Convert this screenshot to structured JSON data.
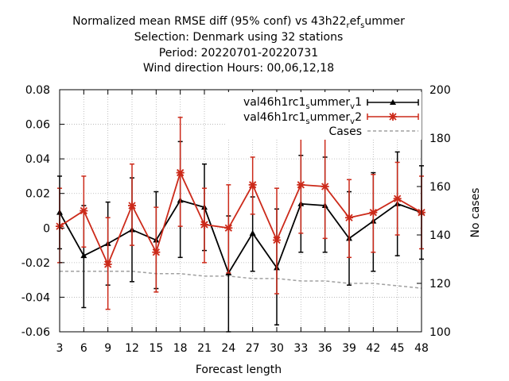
{
  "chart_data": {
    "type": "line",
    "title_lines": [
      "Normalized mean RMSE diff (95% conf) vs 43h22",
      "Selection: Denmark using    32 stations",
      "Period: 20220701-20220731",
      "Wind direction   Hours:  00,06,12,18"
    ],
    "title_suffix": {
      "sub1": "r",
      "mid": "ef",
      "sub2": "s",
      "tail": "ummer"
    },
    "xlabel": "Forecast length",
    "ylabel_right": "No cases",
    "x": [
      3,
      6,
      9,
      12,
      15,
      18,
      21,
      24,
      27,
      30,
      33,
      36,
      39,
      42,
      45,
      48
    ],
    "xlim": [
      3,
      48
    ],
    "ylim": [
      -0.06,
      0.08
    ],
    "y_ticks": [
      "0.08",
      "0.06",
      "0.04",
      "0.02",
      "0",
      "-0.02",
      "-0.04",
      "-0.06"
    ],
    "y_tick_values": [
      0.08,
      0.06,
      0.04,
      0.02,
      0,
      -0.02,
      -0.04,
      -0.06
    ],
    "y2lim": [
      100,
      200
    ],
    "y2_ticks": [
      "200",
      "180",
      "160",
      "140",
      "120",
      "100"
    ],
    "y2_tick_values": [
      200,
      180,
      160,
      140,
      120,
      100
    ],
    "grid": true,
    "legend_position": "top-right",
    "series": [
      {
        "name_parts": {
          "base": "val46h1rc1",
          "sub1": "s",
          "mid": "ummer",
          "sub2": "v",
          "tail": "1"
        },
        "color": "#000000",
        "marker": "triangle",
        "values": [
          0.009,
          -0.016,
          -0.009,
          -0.001,
          -0.007,
          0.016,
          0.012,
          -0.026,
          -0.003,
          -0.023,
          0.014,
          0.013,
          -0.006,
          0.004,
          0.014,
          0.009
        ],
        "lower": [
          -0.012,
          -0.046,
          -0.033,
          -0.031,
          -0.035,
          -0.017,
          -0.013,
          -0.06,
          -0.025,
          -0.056,
          -0.014,
          -0.014,
          -0.033,
          -0.025,
          -0.016,
          -0.018
        ],
        "upper": [
          0.03,
          0.013,
          0.015,
          0.029,
          0.021,
          0.05,
          0.037,
          0.007,
          0.018,
          0.011,
          0.042,
          0.041,
          0.021,
          0.032,
          0.044,
          0.036
        ]
      },
      {
        "name_parts": {
          "base": "val46h1rc1",
          "sub1": "s",
          "mid": "ummer",
          "sub2": "v",
          "tail": "2"
        },
        "color": "#cc2a1a",
        "marker": "cross",
        "values": [
          0.001,
          0.01,
          -0.021,
          0.013,
          -0.014,
          0.032,
          0.002,
          0.0,
          0.025,
          -0.007,
          0.025,
          0.024,
          0.006,
          0.009,
          0.017,
          0.009
        ],
        "lower": [
          -0.02,
          -0.011,
          -0.047,
          -0.01,
          -0.037,
          0.001,
          -0.02,
          -0.026,
          0.008,
          -0.038,
          -0.003,
          -0.006,
          -0.017,
          -0.014,
          -0.004,
          -0.012
        ],
        "upper": [
          0.023,
          0.03,
          0.006,
          0.037,
          0.012,
          0.064,
          0.023,
          0.025,
          0.041,
          0.023,
          0.053,
          0.054,
          0.028,
          0.031,
          0.038,
          0.03
        ]
      }
    ],
    "cases": {
      "name": "Cases",
      "color": "#a0a0a0",
      "axis": "right",
      "values": [
        125,
        125,
        125,
        125,
        124,
        124,
        123,
        123,
        122,
        122,
        121,
        121,
        120,
        120,
        119,
        118
      ]
    }
  }
}
